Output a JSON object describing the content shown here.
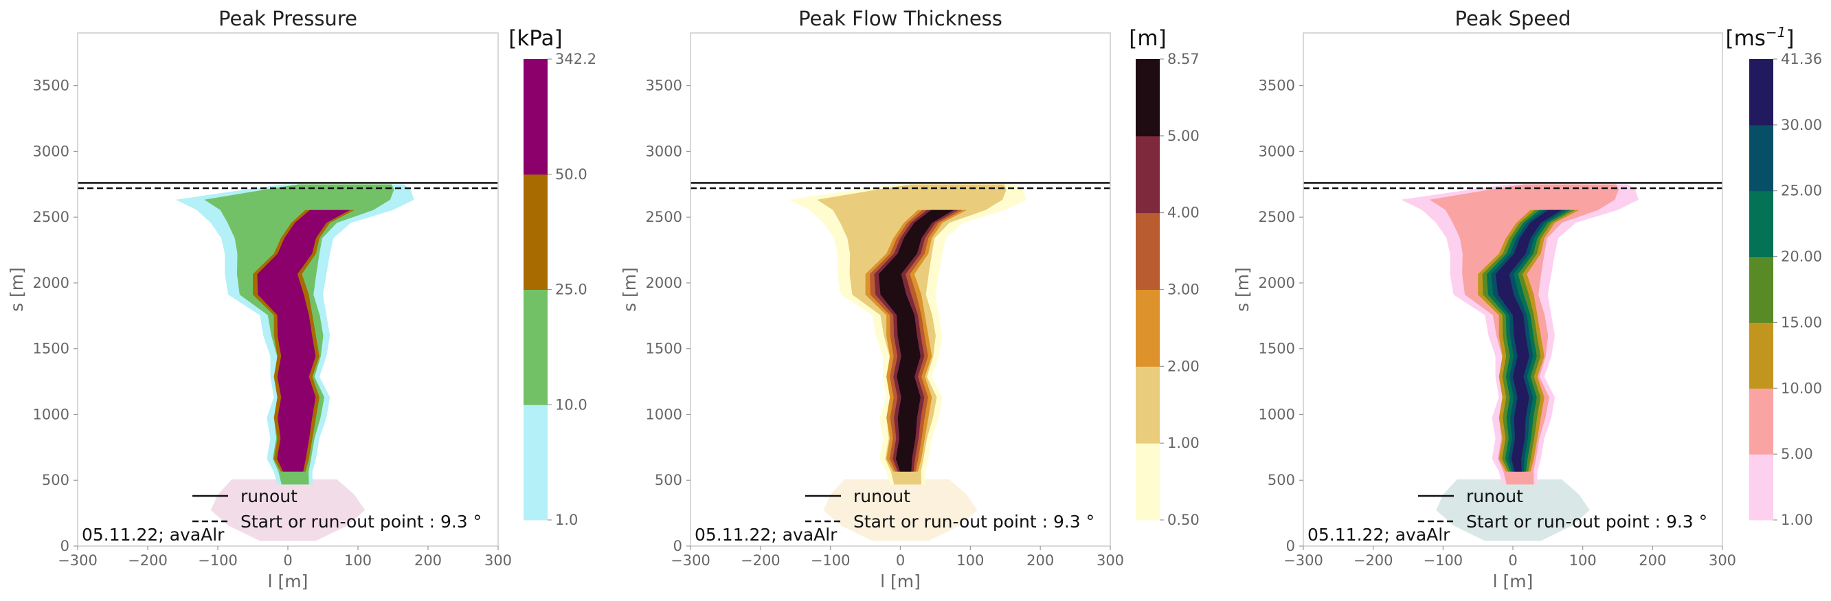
{
  "figure": {
    "date_text": "05.11.22; avaAlr",
    "legend": {
      "runout_label": "runout",
      "start_label": "Start or run-out point : 9.3 °"
    }
  },
  "chart_data": [
    {
      "type": "heatmap",
      "title": "Peak Pressure",
      "xlabel": "l [m]",
      "ylabel": "s [m]",
      "xlim": [
        -300,
        300
      ],
      "ylim": [
        0,
        3900
      ],
      "xticks": [
        -300,
        -200,
        -100,
        0,
        100,
        200,
        300
      ],
      "yticks": [
        0,
        500,
        1000,
        1500,
        2000,
        2500,
        3000,
        3500
      ],
      "runout_line": 2760,
      "start_runout_line": 2720,
      "colorbar": {
        "unit": "[kPa]",
        "bounds": [
          "1.0",
          "10.0",
          "25.0",
          "50.0",
          "342.2"
        ],
        "colors": [
          "#b3f0f7",
          "#72c166",
          "#a86b00",
          "#8b006b"
        ],
        "outflow_tint": "#f0d8e6"
      }
    },
    {
      "type": "heatmap",
      "title": "Peak Flow Thickness",
      "xlabel": "l [m]",
      "ylabel": "s [m]",
      "xlim": [
        -300,
        300
      ],
      "ylim": [
        0,
        3900
      ],
      "xticks": [
        -300,
        -200,
        -100,
        0,
        100,
        200,
        300
      ],
      "yticks": [
        0,
        500,
        1000,
        1500,
        2000,
        2500,
        3000,
        3500
      ],
      "runout_line": 2760,
      "start_runout_line": 2720,
      "colorbar": {
        "unit": "[m]",
        "bounds": [
          "0.50",
          "1.00",
          "2.00",
          "3.00",
          "4.00",
          "5.00",
          "8.57"
        ],
        "colors": [
          "#fffdd0",
          "#e9cd7c",
          "#dd922c",
          "#b95c30",
          "#7e2a3c",
          "#1e0c12"
        ],
        "outflow_tint": "#fbf0d8"
      }
    },
    {
      "type": "heatmap",
      "title": "Peak Speed",
      "xlabel": "l [m]",
      "ylabel": "s [m]",
      "xlim": [
        -300,
        300
      ],
      "ylim": [
        0,
        3900
      ],
      "xticks": [
        -300,
        -200,
        -100,
        0,
        100,
        200,
        300
      ],
      "yticks": [
        0,
        500,
        1000,
        1500,
        2000,
        2500,
        3000,
        3500
      ],
      "runout_line": 2760,
      "start_runout_line": 2720,
      "colorbar": {
        "unit_base": "[ms",
        "unit_sup": "−1",
        "unit_close": "]",
        "bounds": [
          "1.00",
          "5.00",
          "10.00",
          "15.00",
          "20.00",
          "25.00",
          "30.00",
          "41.36"
        ],
        "colors": [
          "#fdd0f0",
          "#f9a3a3",
          "#c2961e",
          "#588a26",
          "#037255",
          "#074f66",
          "#221a5e"
        ],
        "outflow_tint": "#d6e4e4"
      }
    }
  ]
}
